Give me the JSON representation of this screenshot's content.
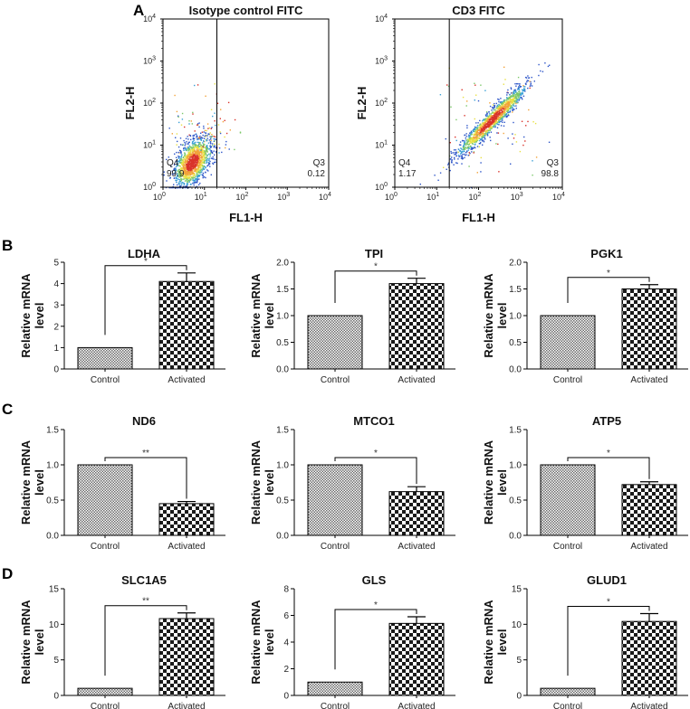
{
  "panels": {
    "A": "A",
    "B": "B",
    "C": "C",
    "D": "D"
  },
  "flow": [
    {
      "title": "Isotype control FITC",
      "xlabel": "FL1-H",
      "ylabel": "FL2-H",
      "gate_x": 20,
      "quadrants": [
        {
          "name": "Q4",
          "value": "99.9",
          "pos": "bottom-left"
        },
        {
          "name": "Q3",
          "value": "0.12",
          "pos": "bottom-right"
        }
      ],
      "cloud": {
        "shape": "blob",
        "center": [
          5,
          4
        ]
      }
    },
    {
      "title": "CD3 FITC",
      "xlabel": "FL1-H",
      "ylabel": "FL2-H",
      "gate_x": 20,
      "quadrants": [
        {
          "name": "Q4",
          "value": "1.17",
          "pos": "bottom-left"
        },
        {
          "name": "Q3",
          "value": "98.8",
          "pos": "bottom-right"
        }
      ],
      "cloud": {
        "shape": "diagonal",
        "center": [
          200,
          40
        ]
      }
    }
  ],
  "flow_axis": {
    "scale": "log",
    "range": [
      1,
      10000
    ],
    "ticks": [
      {
        "b": "10",
        "e": "0"
      },
      {
        "b": "10",
        "e": "1"
      },
      {
        "b": "10",
        "e": "2"
      },
      {
        "b": "10",
        "e": "3"
      },
      {
        "b": "10",
        "e": "4"
      }
    ]
  },
  "chart_data": [
    {
      "type": "bar",
      "panel": "B",
      "title": "LDHA",
      "ylabel": "Relative mRNA level",
      "categories": [
        "Control",
        "Activated"
      ],
      "values": [
        1,
        4.1
      ],
      "errors": [
        0,
        0.4
      ],
      "ylim": [
        0,
        5
      ],
      "yticks": [
        "0",
        "1",
        "2",
        "3",
        "4",
        "5"
      ],
      "significance": "*"
    },
    {
      "type": "bar",
      "panel": "B",
      "title": "TPI",
      "ylabel": "Relative mRNA level",
      "categories": [
        "Control",
        "Activated"
      ],
      "values": [
        1,
        1.6
      ],
      "errors": [
        0,
        0.1
      ],
      "ylim": [
        0,
        2
      ],
      "yticks": [
        "0.0",
        "0.5",
        "1.0",
        "1.5",
        "2.0"
      ],
      "significance": "*"
    },
    {
      "type": "bar",
      "panel": "B",
      "title": "PGK1",
      "ylabel": "Relative mRNA level",
      "categories": [
        "Control",
        "Activated"
      ],
      "values": [
        1,
        1.5
      ],
      "errors": [
        0,
        0.08
      ],
      "ylim": [
        0,
        2
      ],
      "yticks": [
        "0.0",
        "0.5",
        "1.0",
        "1.5",
        "2.0"
      ],
      "significance": "*"
    },
    {
      "type": "bar",
      "panel": "C",
      "title": "ND6",
      "ylabel": "Relative mRNA level",
      "categories": [
        "Control",
        "Activated"
      ],
      "values": [
        1,
        0.45
      ],
      "errors": [
        0,
        0.03
      ],
      "ylim": [
        0,
        1.5
      ],
      "yticks": [
        "0.0",
        "0.5",
        "1.0",
        "1.5"
      ],
      "significance": "**"
    },
    {
      "type": "bar",
      "panel": "C",
      "title": "MTCO1",
      "ylabel": "Relative mRNA level",
      "categories": [
        "Control",
        "Activated"
      ],
      "values": [
        1,
        0.62
      ],
      "errors": [
        0,
        0.07
      ],
      "ylim": [
        0,
        1.5
      ],
      "yticks": [
        "0.0",
        "0.5",
        "1.0",
        "1.5"
      ],
      "significance": "*"
    },
    {
      "type": "bar",
      "panel": "C",
      "title": "ATP5",
      "ylabel": "Relative mRNA level",
      "categories": [
        "Control",
        "Activated"
      ],
      "values": [
        1,
        0.72
      ],
      "errors": [
        0,
        0.04
      ],
      "ylim": [
        0,
        1.5
      ],
      "yticks": [
        "0.0",
        "0.5",
        "1.0",
        "1.5"
      ],
      "significance": "*"
    },
    {
      "type": "bar",
      "panel": "D",
      "title": "SLC1A5",
      "ylabel": "Relative mRNA level",
      "categories": [
        "Control",
        "Activated"
      ],
      "values": [
        1,
        10.8
      ],
      "errors": [
        0,
        0.8
      ],
      "ylim": [
        0,
        15
      ],
      "yticks": [
        "0",
        "5",
        "10",
        "15"
      ],
      "significance": "**"
    },
    {
      "type": "bar",
      "panel": "D",
      "title": "GLS",
      "ylabel": "Relative mRNA level",
      "categories": [
        "Control",
        "Activated"
      ],
      "values": [
        1,
        5.4
      ],
      "errors": [
        0,
        0.5
      ],
      "ylim": [
        0,
        8
      ],
      "yticks": [
        "0",
        "2",
        "4",
        "6",
        "8"
      ],
      "significance": "*"
    },
    {
      "type": "bar",
      "panel": "D",
      "title": "GLUD1",
      "ylabel": "Relative mRNA level",
      "categories": [
        "Control",
        "Activated"
      ],
      "values": [
        1,
        10.4
      ],
      "errors": [
        0,
        1.1
      ],
      "ylim": [
        0,
        15
      ],
      "yticks": [
        "0",
        "5",
        "10",
        "15"
      ],
      "significance": "*"
    }
  ]
}
